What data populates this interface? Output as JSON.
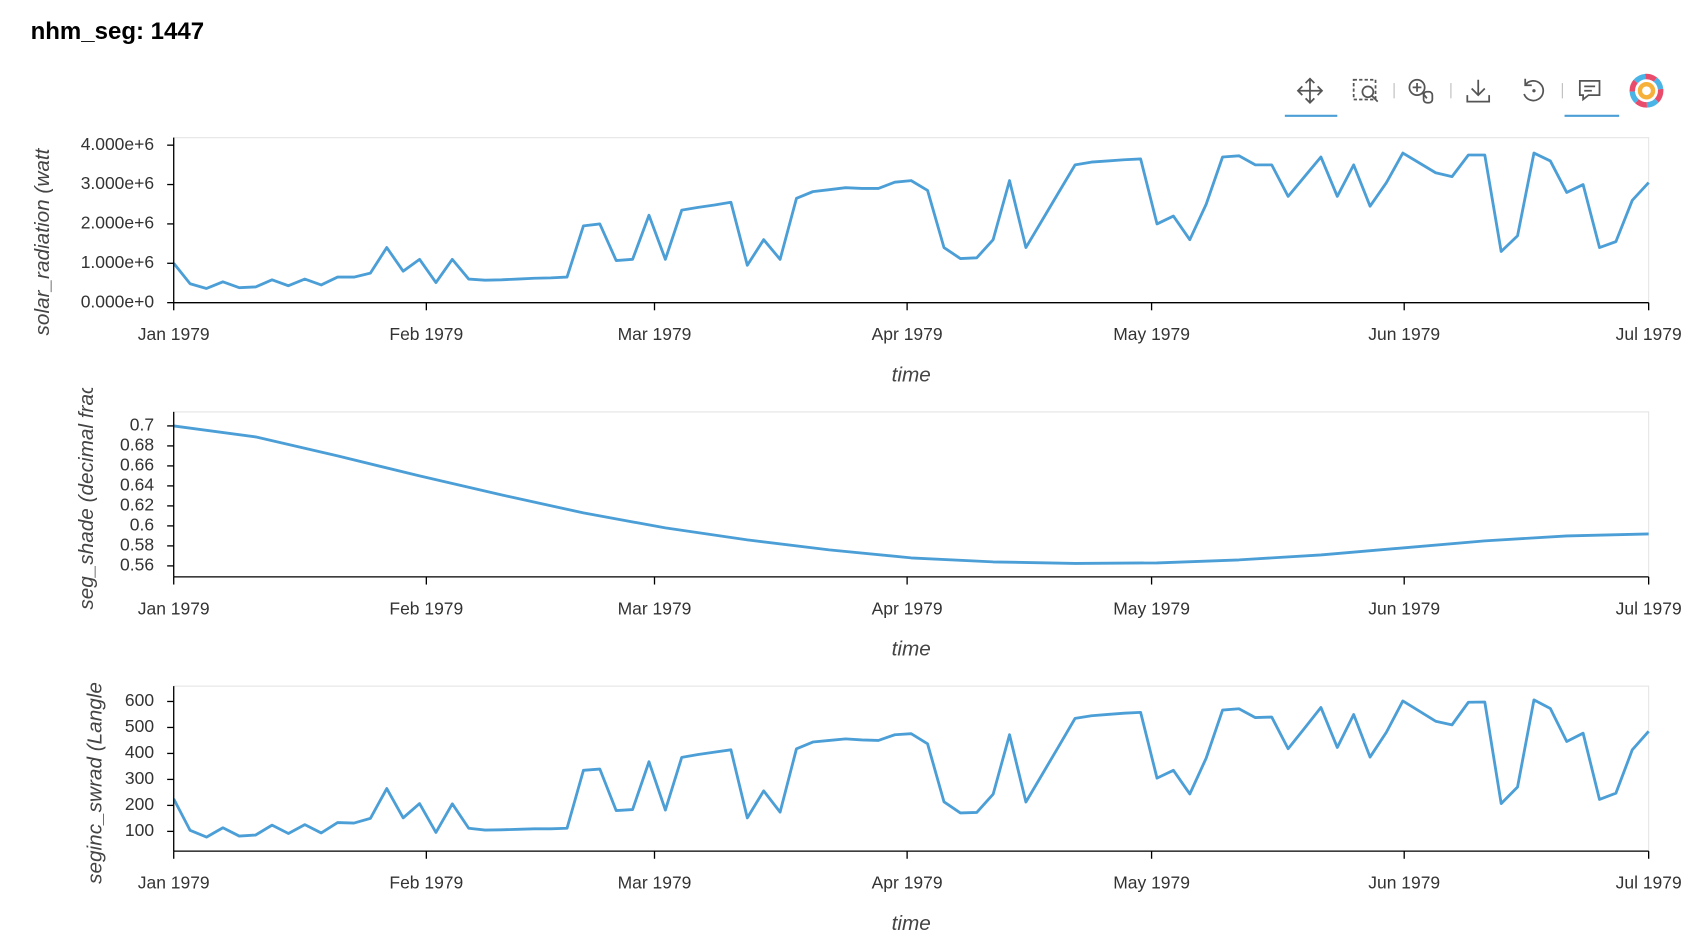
{
  "title": "nhm_seg: 1447",
  "chart_data": [
    {
      "type": "line",
      "x_label": "time",
      "y_label": "solar_radiation (watt",
      "color": "#4c9fd6",
      "xlim": [
        "Jan 1979",
        "Jul 1979"
      ],
      "xticks": [
        "Jan 1979",
        "Feb 1979",
        "Mar 1979",
        "Apr 1979",
        "May 1979",
        "Jun 1979",
        "Jul 1979"
      ],
      "ylim": [
        0,
        4190000.0
      ],
      "yticks": [
        {
          "value": 0,
          "label": "0.000e+0"
        },
        {
          "value": 1000000,
          "label": "1.000e+6"
        },
        {
          "value": 2000000,
          "label": "2.000e+6"
        },
        {
          "value": 3000000,
          "label": "3.000e+6"
        },
        {
          "value": 4000000,
          "label": "4.000e+6"
        }
      ],
      "values": [
        1000000.0,
        480000.0,
        360000.0,
        530000.0,
        380000.0,
        400000.0,
        580000.0,
        430000.0,
        600000.0,
        450000.0,
        650000.0,
        650000.0,
        750000.0,
        1400000.0,
        800000.0,
        1100000.0,
        510000.0,
        1100000.0,
        600000.0,
        570000.0,
        580000.0,
        600000.0,
        620000.0,
        630000.0,
        650000.0,
        1950000.0,
        2000000.0,
        1070000.0,
        1100000.0,
        2220000.0,
        1100000.0,
        2350000.0,
        2420000.0,
        2480000.0,
        2550000.0,
        950000.0,
        1600000.0,
        1100000.0,
        2650000.0,
        2820000.0,
        2870000.0,
        2920000.0,
        2900000.0,
        2900000.0,
        3060000.0,
        3100000.0,
        2850000.0,
        1400000.0,
        1120000.0,
        1140000.0,
        1600000.0,
        3100000.0,
        1400000.0,
        2100000.0,
        2800000.0,
        3500000.0,
        3570000.0,
        3600000.0,
        3630000.0,
        3650000.0,
        2000000.0,
        2200000.0,
        1600000.0,
        2500000.0,
        3700000.0,
        3730000.0,
        3500000.0,
        3500000.0,
        2700000.0,
        3200000.0,
        3700000.0,
        2700000.0,
        3500000.0,
        2450000.0,
        3050000.0,
        3800000.0,
        3550000.0,
        3300000.0,
        3200000.0,
        3750000.0,
        3750000.0,
        1300000.0,
        1700000.0,
        3800000.0,
        3600000.0,
        2800000.0,
        3000000.0,
        1400000.0,
        1550000.0,
        2600000.0,
        3050000.0
      ]
    },
    {
      "type": "line",
      "x_label": "time",
      "y_label": "seg_shade (decimal frac",
      "color": "#4c9fd6",
      "xlim": [
        "Jan 1979",
        "Jul 1979"
      ],
      "xticks": [
        "Jan 1979",
        "Feb 1979",
        "Mar 1979",
        "Apr 1979",
        "May 1979",
        "Jun 1979",
        "Jul 1979"
      ],
      "ylim": [
        0.549,
        0.714
      ],
      "yticks": [
        0.56,
        0.58,
        0.6,
        0.62,
        0.64,
        0.66,
        0.68,
        0.7
      ],
      "values": [
        0.7,
        0.689,
        0.67,
        0.65,
        0.631,
        0.613,
        0.598,
        0.586,
        0.576,
        0.568,
        0.564,
        0.5625,
        0.563,
        0.566,
        0.571,
        0.578,
        0.585,
        0.59,
        0.592
      ]
    },
    {
      "type": "line",
      "x_label": "time",
      "y_label": "seginc_swrad (Langle",
      "color": "#4c9fd6",
      "xlim": [
        "Jan 1979",
        "Jul 1979"
      ],
      "xticks": [
        "Jan 1979",
        "Feb 1979",
        "Mar 1979",
        "Apr 1979",
        "May 1979",
        "Jun 1979",
        "Jul 1979"
      ],
      "ylim": [
        24,
        659
      ],
      "yticks": [
        100,
        200,
        300,
        400,
        500,
        600
      ],
      "values": [
        225,
        104,
        78,
        114,
        82,
        86,
        124,
        92,
        126,
        94,
        134,
        132,
        150,
        265,
        152,
        207,
        96,
        206,
        112,
        105,
        106,
        108,
        110,
        110,
        112,
        335,
        340,
        180,
        184,
        368,
        182,
        385,
        396,
        405,
        414,
        152,
        256,
        174,
        418,
        444,
        450,
        456,
        452,
        450,
        472,
        476,
        437,
        214,
        171,
        173,
        243,
        472,
        213,
        320,
        427,
        535,
        545,
        550,
        555,
        558,
        305,
        335,
        244,
        382,
        567,
        572,
        538,
        540,
        418,
        497,
        577,
        423,
        550,
        386,
        482,
        602,
        563,
        524,
        510,
        597,
        598,
        207,
        271,
        606,
        573,
        446,
        478,
        223,
        247,
        414,
        485
      ]
    }
  ]
}
